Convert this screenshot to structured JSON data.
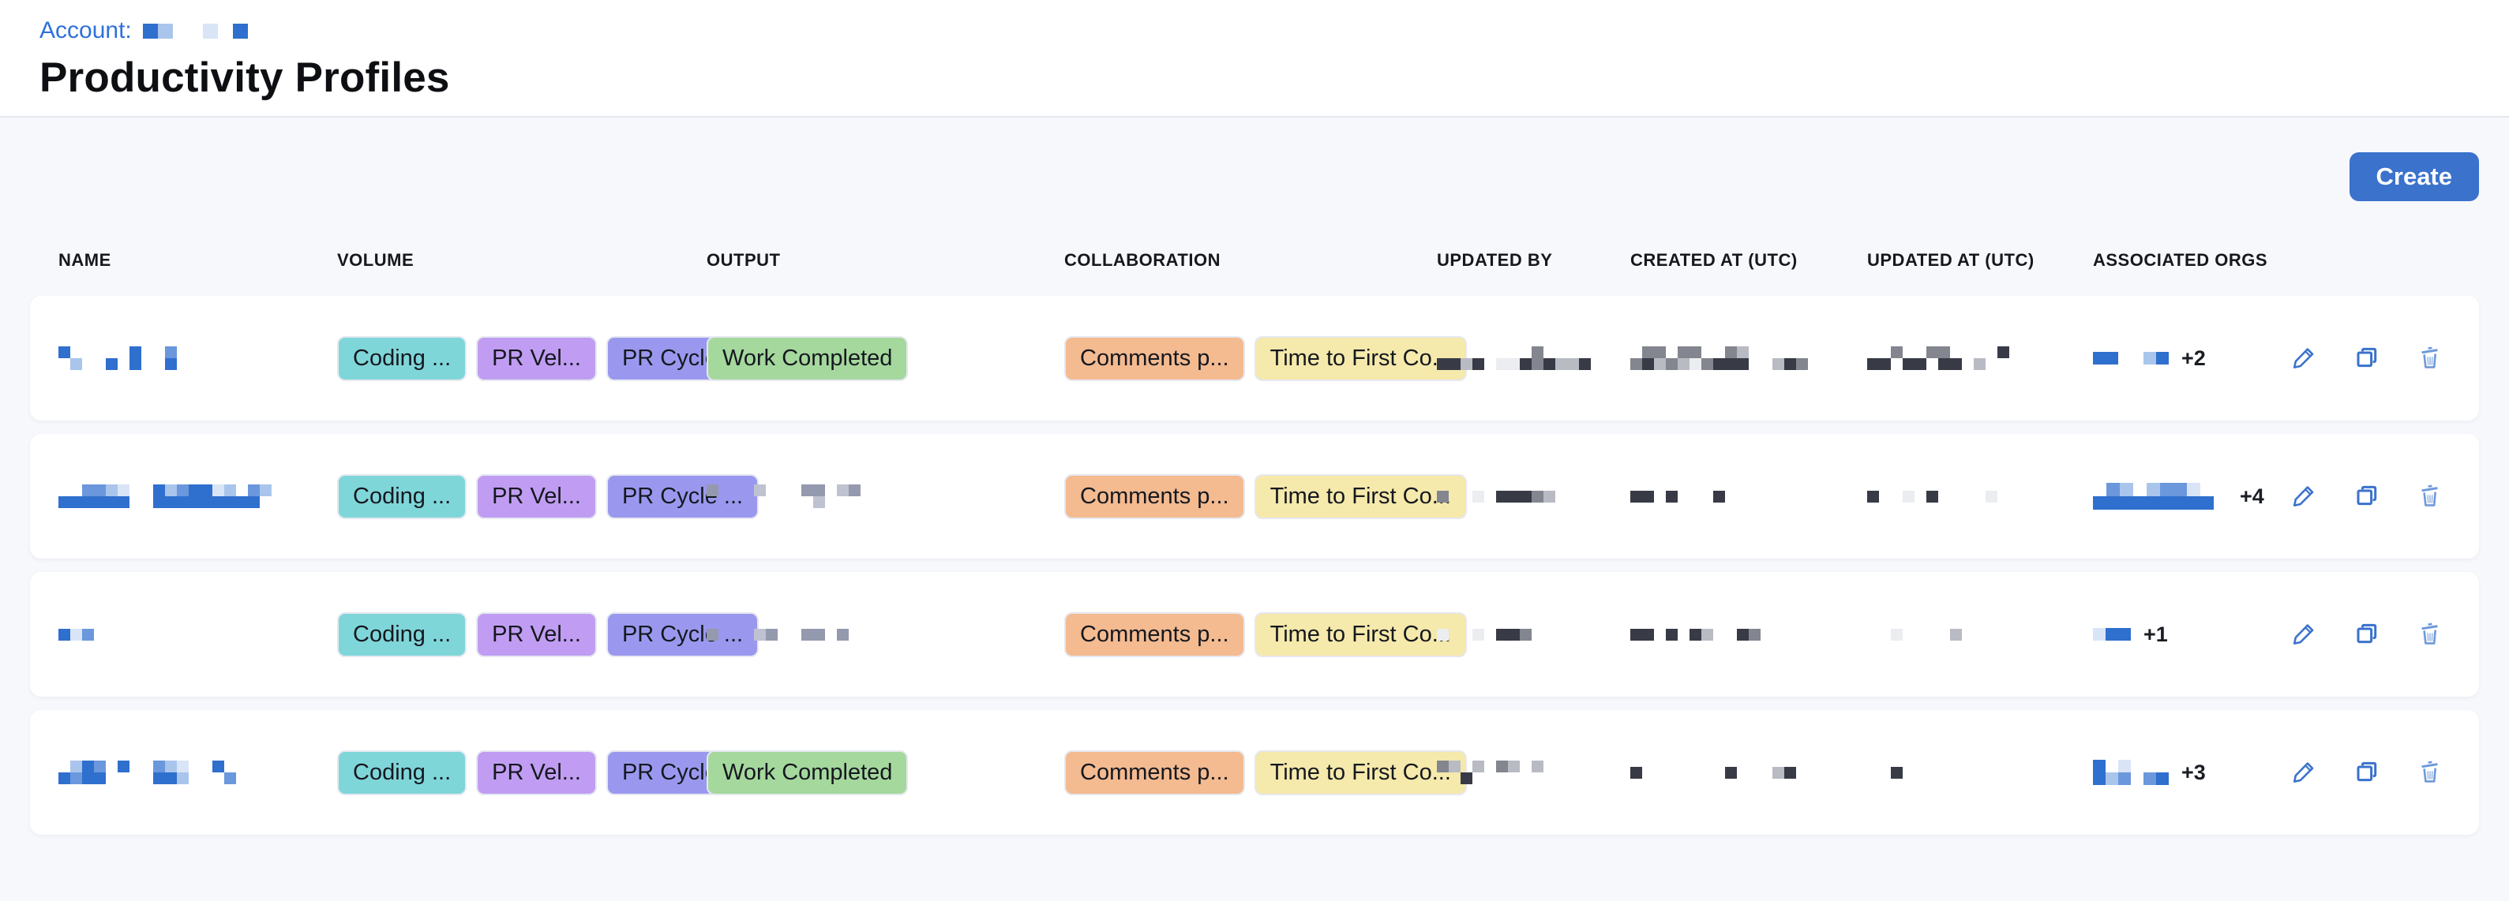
{
  "page": {
    "breadcrumb_label": "Account:",
    "title": "Productivity Profiles"
  },
  "toolbar": {
    "create_label": "Create"
  },
  "colors": {
    "accent_blue": "#3a72cc",
    "breadcrumb_blue": "#2e71da",
    "page_bg": "#f7f8fc",
    "card_bg": "#ffffff"
  },
  "chip_colors": {
    "coding": "#7fd6d9",
    "pr_velocity": "#c09df2",
    "pr_cycle": "#9a98ee",
    "work_completed": "#a5d89d",
    "comments": "#f4ba90",
    "time_to_first": "#f5e9ab"
  },
  "redaction_palettes": {
    "blue": {
      "D": "#2f6fce",
      "M": "#6b97dd",
      "L": "#a9c5ec",
      "X": "#d9e5f6"
    },
    "dark": {
      "D": "#383b46",
      "M": "#83868f",
      "L": "#b9bbc3",
      "X": "#ecedf0"
    },
    "gray": {
      "D": "#70748a",
      "M": "#9599ae",
      "L": "#bfc2d0",
      "X": "#e2e4ec"
    }
  },
  "breadcrumb_redaction": {
    "palette": "blue",
    "cell": 19,
    "rows": [
      "DL..X.D"
    ]
  },
  "table": {
    "columns": [
      {
        "key": "name",
        "label": "NAME"
      },
      {
        "key": "volume",
        "label": "VOLUME"
      },
      {
        "key": "output",
        "label": "OUTPUT"
      },
      {
        "key": "collaboration",
        "label": "COLLABORATION"
      },
      {
        "key": "updated_by",
        "label": "UPDATED BY"
      },
      {
        "key": "created_at",
        "label": "CREATED AT (UTC)"
      },
      {
        "key": "updated_at",
        "label": "UPDATED AT (UTC)"
      },
      {
        "key": "orgs",
        "label": "ASSOCIATED ORGS"
      },
      {
        "key": "actions",
        "label": ""
      }
    ],
    "shared_chips": {
      "volume": [
        {
          "label": "Coding ...",
          "color": "coding"
        },
        {
          "label": "PR Vel...",
          "color": "pr_velocity"
        },
        {
          "label": "PR Cycle ...",
          "color": "pr_cycle"
        }
      ],
      "collaboration": [
        {
          "label": "Comments p...",
          "color": "comments"
        },
        {
          "label": "Time to First Co...",
          "color": "time_to_first"
        }
      ],
      "work_completed": {
        "label": "Work Completed",
        "color": "work_completed"
      }
    },
    "actions": [
      {
        "key": "edit",
        "icon": "pencil-icon"
      },
      {
        "key": "duplicate",
        "icon": "copy-icon"
      },
      {
        "key": "delete",
        "icon": "trash-icon"
      }
    ],
    "rows": [
      {
        "name_redaction": {
          "palette": "blue",
          "cell": 15,
          "rows": [
            "D.....D..M",
            ".L..D.D..D"
          ]
        },
        "output": {
          "chip": true
        },
        "updated_by_redaction": {
          "palette": "dark",
          "cell": 15,
          "rows": [
            "........M....",
            "DDLD.XXDMDLLD"
          ]
        },
        "created_at_redaction": {
          "palette": "dark",
          "cell": 15,
          "rows": [
            ".MM.MM..ML......",
            "MDLMLXMDDD..LDM."
          ]
        },
        "updated_at_redaction": {
          "palette": "dark",
          "cell": 15,
          "rows": [
            "..M..MM....D....",
            "DD.DD.DD.L......"
          ]
        },
        "orgs_redaction": {
          "palette": "blue",
          "cell": 16,
          "rows": [
            "DD..LD"
          ]
        },
        "orgs_more": "+2"
      },
      {
        "name_redaction": {
          "palette": "blue",
          "cell": 15,
          "rows": [
            "..MMLX..DLMDDXL.ML",
            "DDDDDD..DDDDDDDDD."
          ]
        },
        "output": {
          "redaction": {
            "palette": "gray",
            "cell": 15,
            "rows": [
              "M...L...MM.LM.",
              ".........L...."
            ]
          }
        },
        "updated_by_redaction": {
          "palette": "dark",
          "cell": 15,
          "rows": [
            "M..X.DDDML...."
          ]
        },
        "created_at_redaction": {
          "palette": "dark",
          "cell": 15,
          "rows": [
            "DD.D...D........"
          ]
        },
        "updated_at_redaction": {
          "palette": "dark",
          "cell": 15,
          "rows": [
            "D..X.D....X....."
          ]
        },
        "orgs_redaction": {
          "palette": "blue",
          "cell": 17,
          "rows": [
            ".ML.LMMX..",
            "DDDDDDDDD."
          ]
        },
        "orgs_more": "+4"
      },
      {
        "name_redaction": {
          "palette": "blue",
          "cell": 15,
          "rows": [
            "DXM"
          ]
        },
        "output": {
          "redaction": {
            "palette": "gray",
            "cell": 15,
            "rows": [
              "M...LM..MM.M.."
            ]
          }
        },
        "updated_by_redaction": {
          "palette": "dark",
          "cell": 15,
          "rows": [
            "X..X.DDM......"
          ]
        },
        "created_at_redaction": {
          "palette": "dark",
          "cell": 15,
          "rows": [
            "DD.D.DL..DM....."
          ]
        },
        "updated_at_redaction": {
          "palette": "dark",
          "cell": 15,
          "rows": [
            "..X....L........"
          ]
        },
        "orgs_redaction": {
          "palette": "blue",
          "cell": 16,
          "rows": [
            "XDD"
          ]
        },
        "orgs_more": "+1"
      },
      {
        "name_redaction": {
          "palette": "blue",
          "cell": 15,
          "rows": [
            ".LDM.D..MLX..D.",
            "DMDD....DDL...M"
          ]
        },
        "output": {
          "chip": true
        },
        "updated_by_redaction": {
          "palette": "dark",
          "cell": 15,
          "rows": [
            "ML.L.ML.L.....",
            "..D..........."
          ]
        },
        "created_at_redaction": {
          "palette": "dark",
          "cell": 15,
          "rows": [
            "D.......D...LD.."
          ]
        },
        "updated_at_redaction": {
          "palette": "dark",
          "cell": 15,
          "rows": [
            "..D............."
          ]
        },
        "orgs_redaction": {
          "palette": "blue",
          "cell": 16,
          "rows": [
            "D.X...",
            "DLM.MD"
          ]
        },
        "orgs_more": "+3"
      }
    ]
  }
}
